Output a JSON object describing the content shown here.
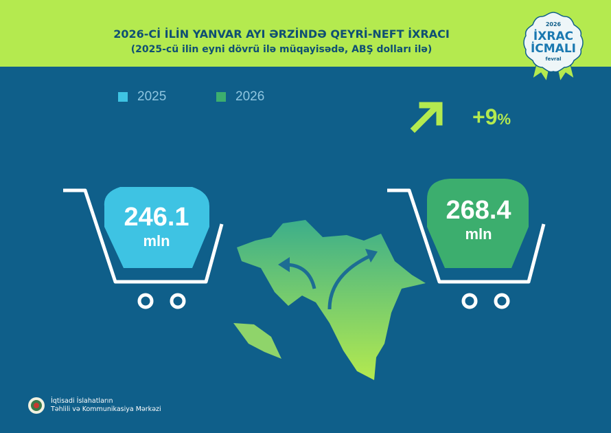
{
  "header": {
    "title": "2026-Cİ İLİN YANVAR AYI ƏRZİNDƏ QEYRİ-NEFT İXRACI",
    "subtitle": "(2025-cü ilin eyni dövrü ilə müqayisədə, ABŞ dolları ilə)"
  },
  "badge": {
    "year": "2026",
    "line1": "İXRAC",
    "line2": "İCMALI",
    "month": "fevral"
  },
  "legend": [
    {
      "label": "2025",
      "color": "#3ec3e3"
    },
    {
      "label": "2026",
      "color": "#3cae6e"
    }
  ],
  "values": [
    {
      "year": "2025",
      "value": "246.1",
      "unit": "mln",
      "color": "#3ec3e3"
    },
    {
      "year": "2026",
      "value": "268.4",
      "unit": "mln",
      "color": "#3cae6e"
    }
  ],
  "change": {
    "value": "+9",
    "unit": "%",
    "icon": "arrow-up-right-icon",
    "color": "#b4ea4f"
  },
  "footer": {
    "line1": "İqtisadi İslahatların",
    "line2": "Təhlili və Kommunikasiya Mərkəzi"
  }
}
